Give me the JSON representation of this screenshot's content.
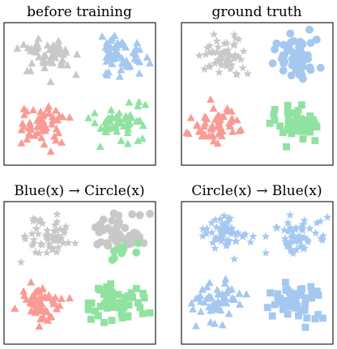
{
  "colors": {
    "gray": "#c8c8c8",
    "blue": "#a4c8f0",
    "red": "#fa9a94",
    "green": "#90e2a0"
  },
  "chart_data": [
    {
      "type": "scatter",
      "title": "before training",
      "grid": false,
      "clusters": [
        {
          "quadrant": "top-left",
          "marker": "triangle",
          "color": "gray"
        },
        {
          "quadrant": "top-right",
          "marker": "triangle",
          "color": "blue"
        },
        {
          "quadrant": "bottom-left",
          "marker": "triangle",
          "color": "red"
        },
        {
          "quadrant": "bottom-right",
          "marker": "triangle",
          "color": "green"
        }
      ]
    },
    {
      "type": "scatter",
      "title": "ground truth",
      "grid": false,
      "clusters": [
        {
          "quadrant": "top-left",
          "marker": "star",
          "color": "gray"
        },
        {
          "quadrant": "top-right",
          "marker": "circle",
          "color": "blue"
        },
        {
          "quadrant": "bottom-left",
          "marker": "triangle",
          "color": "red"
        },
        {
          "quadrant": "bottom-right",
          "marker": "square",
          "color": "green"
        }
      ]
    },
    {
      "type": "scatter",
      "title": "Blue(x) → Circle(x)",
      "grid": false,
      "clusters": [
        {
          "quadrant": "top-left",
          "marker": "star",
          "color": "gray"
        },
        {
          "quadrant": "top-right",
          "marker": "circle",
          "color": "gray",
          "secondary_color": "green"
        },
        {
          "quadrant": "bottom-left",
          "marker": "triangle",
          "color": "red"
        },
        {
          "quadrant": "bottom-right",
          "marker": "square",
          "color": "green"
        }
      ]
    },
    {
      "type": "scatter",
      "title": "Circle(x) → Blue(x)",
      "grid": false,
      "clusters": [
        {
          "quadrant": "top-left",
          "marker": "star",
          "color": "blue"
        },
        {
          "quadrant": "top-right",
          "marker": "star",
          "color": "blue"
        },
        {
          "quadrant": "bottom-left",
          "marker": "triangle",
          "color": "blue"
        },
        {
          "quadrant": "bottom-right",
          "marker": "square",
          "color": "blue"
        }
      ]
    }
  ]
}
